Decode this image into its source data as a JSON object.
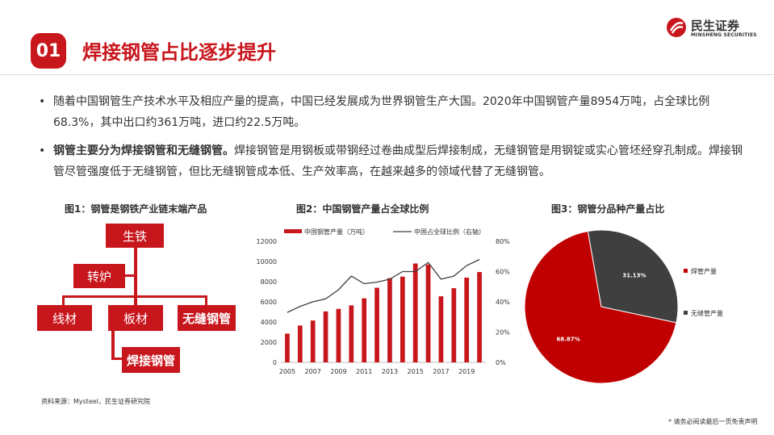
{
  "header": {
    "section_number": "01",
    "title": "焊接钢管占比逐步提升",
    "logo_cn": "民生证券",
    "logo_en": "MINSHENG SECURITIES"
  },
  "bullets": [
    {
      "bold_prefix": "",
      "text": "随着中国钢管生产技术水平及相应产量的提高，中国已经发展成为世界钢管生产大国。2020年中国钢管产量8954万吨，占全球比例68.3%，其中出口约361万吨，进口约22.5万吨。"
    },
    {
      "bold_prefix": "钢管主要分为焊接钢管和无缝钢管。",
      "text": "焊接钢管是用钢板或带钢经过卷曲成型后焊接制成，无缝钢管是用钢锭或实心管坯经穿孔制成。焊接钢管尽管强度低于无缝钢管，但比无缝钢管成本低、生产效率高，在越来越多的领域代替了无缝钢管。"
    }
  ],
  "figure1": {
    "title": "图1：钢管是钢铁产业链末端产品",
    "nodes": {
      "steel": "生铁",
      "converter": "转炉",
      "wire": "线材",
      "plate": "板材",
      "seamless": "无缝钢管",
      "welded": "焊接钢管"
    }
  },
  "figure2": {
    "title": "图2：中国钢管产量占全球比例",
    "legend_bar": "中国钢管产量（万吨）",
    "legend_line": "中国占全球比例（右轴）",
    "colors": {
      "bar": "#c8161d",
      "line": "#404040"
    }
  },
  "figure3": {
    "title": "图3：钢管分品种产量占比",
    "colors": {
      "welded": "#c00000",
      "seamless": "#3f3f3f"
    }
  },
  "chart_data": [
    {
      "type": "bar",
      "title": "图2：中国钢管产量占全球比例",
      "x": [
        2005,
        2006,
        2007,
        2008,
        2009,
        2010,
        2011,
        2012,
        2013,
        2014,
        2015,
        2016,
        2017,
        2018,
        2019,
        2020
      ],
      "x_tick_labels": [
        "2005",
        "2007",
        "2009",
        "2011",
        "2013",
        "2015",
        "2017",
        "2019"
      ],
      "ylim": [
        0,
        12000
      ],
      "y_ticks": [
        "0",
        "2000",
        "4000",
        "6000",
        "8000",
        "10000",
        "12000"
      ],
      "y2lim": [
        0,
        80
      ],
      "y2_ticks": [
        "0%",
        "20%",
        "40%",
        "60%",
        "80%"
      ],
      "series": [
        {
          "name": "中国钢管产量（万吨）",
          "type": "bar",
          "axis": "left",
          "values": [
            2850,
            3650,
            4150,
            5050,
            5300,
            5650,
            6350,
            7400,
            8350,
            8500,
            9800,
            9700,
            6550,
            7350,
            8400,
            8954
          ]
        },
        {
          "name": "中国占全球比例（右轴）",
          "type": "line",
          "axis": "right",
          "values": [
            33,
            37,
            40,
            42,
            48,
            57,
            52,
            53,
            55,
            60,
            60,
            66,
            55,
            57,
            64,
            68
          ]
        }
      ],
      "legend": "top"
    },
    {
      "type": "pie",
      "title": "图3：钢管分品种产量占比",
      "labels": [
        "焊管产量",
        "无缝管产量"
      ],
      "values": [
        68.87,
        31.13
      ],
      "value_labels": [
        "68.87%",
        "31.13%"
      ],
      "legend": "right"
    }
  ],
  "footer": {
    "source": "资料来源：Mysteel，民生证券研究院",
    "disclaimer": "* 请务必阅读最后一页免责声明"
  }
}
